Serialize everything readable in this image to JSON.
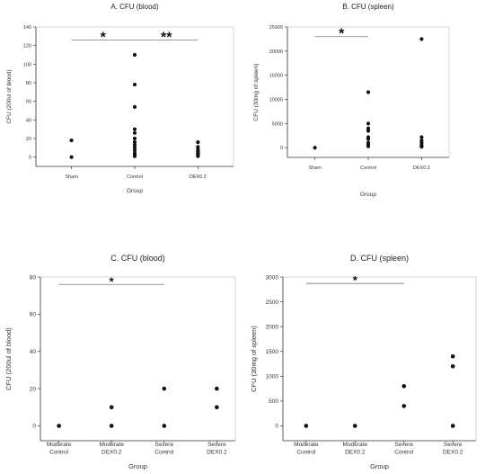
{
  "chart_data": [
    {
      "type": "scatter",
      "title": "A. CFU (blood)",
      "xlabel": "Group",
      "ylabel": "CFU (200ul of blood)",
      "categories": [
        "Sham",
        "Control",
        "DEX0.2"
      ],
      "ylim": [
        -10,
        140
      ],
      "yticks": [
        0,
        20,
        40,
        60,
        80,
        100,
        120,
        140
      ],
      "grid": false,
      "points": [
        {
          "group": "Sham",
          "values": [
            18,
            0
          ]
        },
        {
          "group": "Control",
          "values": [
            110,
            78,
            54,
            30,
            26,
            20,
            16,
            13,
            10,
            7,
            4,
            2,
            1
          ]
        },
        {
          "group": "DEX0.2",
          "values": [
            16,
            11,
            8,
            6,
            5,
            4,
            3,
            2,
            1
          ]
        }
      ],
      "significance": [
        {
          "from": "Sham",
          "to": "Control",
          "label": "*",
          "y": 126
        },
        {
          "from": "Control",
          "to": "DEX0.2",
          "label": "**",
          "y": 126
        }
      ]
    },
    {
      "type": "scatter",
      "title": "B. CFU (spleen)",
      "xlabel": "Group",
      "ylabel": "CFU (30mg of spleen)",
      "categories": [
        "Sham",
        "Control",
        "DEX0.2"
      ],
      "ylim": [
        -2000,
        25000
      ],
      "yticks": [
        0,
        5000,
        10000,
        15000,
        20000,
        25000
      ],
      "grid": false,
      "points": [
        {
          "group": "Sham",
          "values": [
            0
          ]
        },
        {
          "group": "Control",
          "values": [
            11500,
            5000,
            4000,
            3500,
            2200,
            1800,
            1000,
            600,
            300
          ]
        },
        {
          "group": "DEX0.2",
          "values": [
            22500,
            2200,
            1500,
            1000,
            500,
            200
          ]
        }
      ],
      "significance": [
        {
          "from": "Sham",
          "to": "Control",
          "label": "*",
          "y": 23000
        }
      ]
    },
    {
      "type": "scatter",
      "title": "C. CFU (blood)",
      "xlabel": "Group",
      "ylabel": "CFU (200ul of blood)",
      "categories": [
        [
          "Moderate",
          "Control"
        ],
        [
          "Moderate",
          "DEX0.2"
        ],
        [
          "Severe",
          "Control"
        ],
        [
          "Severe",
          "DEX0.2"
        ]
      ],
      "ylim": [
        -8,
        80
      ],
      "yticks": [
        0,
        20,
        40,
        60,
        80
      ],
      "grid": false,
      "points": [
        {
          "group": 0,
          "values": [
            0
          ]
        },
        {
          "group": 1,
          "values": [
            10,
            0
          ]
        },
        {
          "group": 2,
          "values": [
            20,
            0
          ]
        },
        {
          "group": 3,
          "values": [
            20,
            10
          ]
        }
      ],
      "significance": [
        {
          "from": 0,
          "to": 2,
          "label": "*",
          "y": 76
        }
      ]
    },
    {
      "type": "scatter",
      "title": "D. CFU (spleen)",
      "xlabel": "Group",
      "ylabel": "CFU (30mg of spleen)",
      "categories": [
        [
          "Moderate",
          "Control"
        ],
        [
          "Moderate",
          "DEX0.2"
        ],
        [
          "Severe",
          "Control"
        ],
        [
          "Severe",
          "DEX0.2"
        ]
      ],
      "ylim": [
        -300,
        3000
      ],
      "yticks": [
        0,
        500,
        1000,
        1500,
        2000,
        2500,
        3000
      ],
      "grid": false,
      "points": [
        {
          "group": 0,
          "values": [
            0
          ]
        },
        {
          "group": 1,
          "values": [
            0
          ]
        },
        {
          "group": 2,
          "values": [
            800,
            400
          ]
        },
        {
          "group": 3,
          "values": [
            1400,
            1200,
            0
          ]
        }
      ],
      "significance": [
        {
          "from": 0,
          "to": 2,
          "label": "*",
          "y": 2870
        }
      ]
    }
  ]
}
